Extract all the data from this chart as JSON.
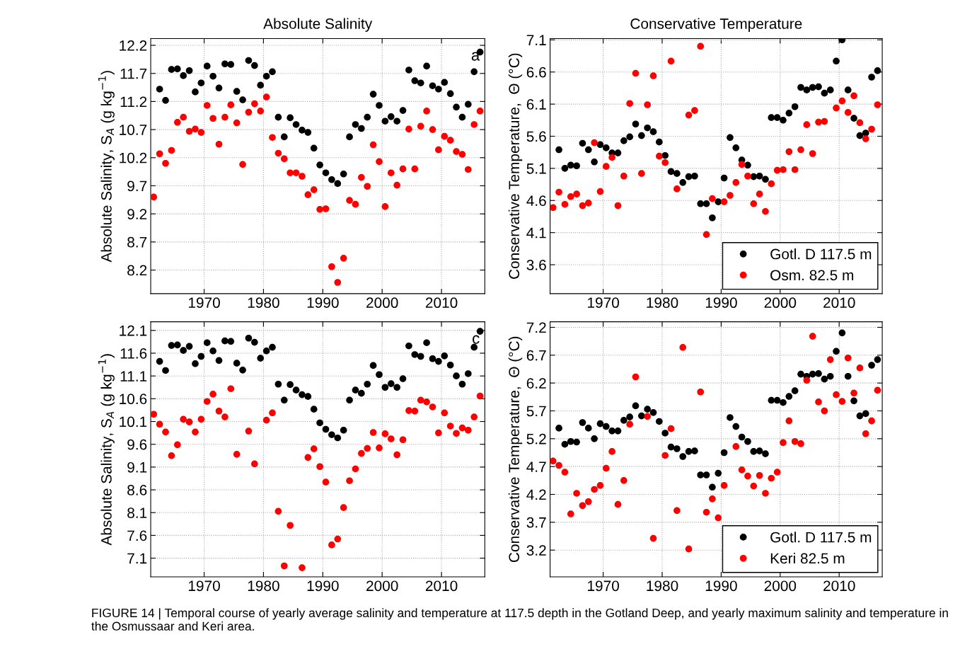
{
  "chart_data": [
    {
      "type": "scatter",
      "title": "Absolute Salinity",
      "ylabel": "Absolute Salinity, S$_{A}$ (g kg$^{−1}$)",
      "xlim": [
        1961,
        2017.3
      ],
      "xticks": [
        1970,
        1980,
        1990,
        2000,
        2010
      ],
      "ylim": [
        7.78,
        12.32
      ],
      "yticks": [
        8.2,
        8.7,
        9.2,
        9.7,
        10.2,
        10.7,
        11.2,
        11.7,
        12.2
      ],
      "grid": true,
      "marker": "circle",
      "annotations": [
        "a",
        "FIGURE 14 | Temporal course of yearly average salinity and temperature at 117.5 depth in the Gotland Deep, and yearly maximum salinity and temperature in the Osmussaar and Keri area."
      ],
      "series": [
        {
          "color": "#000000",
          "x": [
            1962.5,
            1963.5,
            1964.5,
            1965.5,
            1966.5,
            1967.5,
            1968.5,
            1969.5,
            1970.5,
            1971.5,
            1972.5,
            1973.5,
            1974.5,
            1975.5,
            1976.5,
            1977.5,
            1978.5,
            1979.5,
            1980.5,
            1981.5,
            1982.5,
            1983.5,
            1984.5,
            1985.5,
            1986.5,
            1987.5,
            1988.5,
            1989.5,
            1990.5,
            1991.5,
            1992.5,
            1993.5,
            1994.5,
            1995.5,
            1996.5,
            1997.5,
            1998.5,
            1999.5,
            2000.5,
            2001.5,
            2002.5,
            2003.5,
            2004.5,
            2005.5,
            2006.5,
            2007.5,
            2008.5,
            2009.5,
            2010.5,
            2011.5,
            2012.5,
            2013.5,
            2014.5,
            2015.5,
            2016.5
          ],
          "values": [
            11.42,
            11.22,
            11.77,
            11.78,
            11.66,
            11.75,
            11.37,
            11.53,
            11.83,
            11.65,
            11.44,
            11.87,
            11.86,
            11.38,
            11.23,
            11.93,
            11.84,
            11.49,
            11.65,
            11.73,
            10.92,
            10.57,
            10.91,
            10.79,
            10.69,
            10.65,
            10.37,
            10.07,
            9.93,
            9.81,
            9.74,
            9.91,
            10.57,
            10.79,
            10.72,
            10.92,
            11.33,
            11.13,
            10.85,
            10.93,
            10.85,
            11.04,
            11.76,
            11.57,
            11.53,
            11.83,
            11.48,
            11.42,
            11.54,
            11.34,
            11.1,
            10.92,
            11.15,
            11.73,
            12.08
          ]
        },
        {
          "color": "#ff0000",
          "x": [
            1961.5,
            1962.5,
            1963.5,
            1964.5,
            1965.5,
            1966.5,
            1967.5,
            1968.5,
            1969.5,
            1970.5,
            1971.5,
            1972.5,
            1973.5,
            1974.5,
            1975.5,
            1976.5,
            1977.5,
            1978.5,
            1979.5,
            1980.5,
            1981.5,
            1982.5,
            1983.5,
            1984.5,
            1985.5,
            1986.5,
            1987.5,
            1988.5,
            1989.5,
            1990.5,
            1991.5,
            1992.5,
            1993.5,
            1994.5,
            1995.5,
            1996.5,
            1997.5,
            1998.5,
            1999.5,
            2000.5,
            2001.5,
            2002.5,
            2003.5,
            2004.5,
            2005.5,
            2006.5,
            2007.5,
            2008.5,
            2009.5,
            2010.5,
            2011.5,
            2012.5,
            2013.5,
            2014.5,
            2015.5,
            2016.5
          ],
          "values": [
            9.5,
            10.27,
            10.1,
            10.33,
            10.83,
            10.92,
            10.67,
            10.71,
            10.65,
            11.13,
            10.9,
            10.44,
            10.92,
            11.14,
            10.82,
            10.08,
            11.01,
            11.16,
            11.03,
            11.28,
            10.56,
            10.28,
            10.18,
            9.93,
            9.93,
            9.87,
            9.54,
            9.63,
            9.28,
            9.29,
            8.26,
            7.98,
            8.41,
            9.44,
            9.37,
            9.85,
            9.69,
            10.43,
            10.13,
            9.33,
            9.93,
            9.71,
            10.0,
            10.71,
            10.0,
            10.76,
            11.03,
            10.7,
            10.34,
            10.58,
            10.51,
            10.31,
            10.26,
            9.99,
            10.79,
            11.03
          ]
        }
      ]
    },
    {
      "type": "scatter",
      "title": "Conservative Temperature",
      "ylabel": "Conservative Temperature,  Θ (°C)",
      "xlim": [
        1961,
        2017.3
      ],
      "xticks": [
        1970,
        1980,
        1990,
        2000,
        2010
      ],
      "ylim": [
        3.15,
        7.12
      ],
      "yticks": [
        3.6,
        4.1,
        4.6,
        5.1,
        5.6,
        6.1,
        6.6,
        7.1
      ],
      "grid": true,
      "marker": "circle",
      "legend": "bottom right",
      "series": [
        {
          "name": "Gotl. D 117.5 m",
          "color": "#000000",
          "x": [
            1962.5,
            1963.5,
            1964.5,
            1965.5,
            1966.5,
            1967.5,
            1968.5,
            1969.5,
            1970.5,
            1971.5,
            1972.5,
            1973.5,
            1974.5,
            1975.5,
            1976.5,
            1977.5,
            1978.5,
            1979.5,
            1980.5,
            1981.5,
            1982.5,
            1983.5,
            1984.5,
            1985.5,
            1986.5,
            1987.5,
            1988.5,
            1989.5,
            1990.5,
            1991.5,
            1992.5,
            1993.5,
            1994.5,
            1995.5,
            1996.5,
            1997.5,
            1998.5,
            1999.5,
            2000.5,
            2001.5,
            2002.5,
            2003.5,
            2004.5,
            2005.5,
            2006.5,
            2007.5,
            2008.5,
            2009.5,
            2010.5,
            2011.5,
            2012.5,
            2013.5,
            2014.5,
            2015.5,
            2016.5
          ],
          "values": [
            5.39,
            5.1,
            5.15,
            5.14,
            5.49,
            5.39,
            5.2,
            5.47,
            5.42,
            5.34,
            5.34,
            5.53,
            5.59,
            5.79,
            5.61,
            5.73,
            5.67,
            5.51,
            5.3,
            5.05,
            5.02,
            4.88,
            4.97,
            4.98,
            4.55,
            4.55,
            4.33,
            4.58,
            4.95,
            5.58,
            5.42,
            5.23,
            5.15,
            4.97,
            4.98,
            4.93,
            5.89,
            5.89,
            5.85,
            5.96,
            6.06,
            6.36,
            6.32,
            6.36,
            6.37,
            6.27,
            6.32,
            6.77,
            7.1,
            6.32,
            5.88,
            5.61,
            5.65,
            6.52,
            6.62
          ]
        },
        {
          "name": "Osm. 82.5 m",
          "color": "#ff0000",
          "x": [
            1961.5,
            1962.5,
            1963.5,
            1964.5,
            1965.5,
            1966.5,
            1967.5,
            1968.5,
            1969.5,
            1970.5,
            1971.5,
            1972.5,
            1973.5,
            1974.5,
            1975.5,
            1976.5,
            1977.5,
            1978.5,
            1979.5,
            1980.5,
            1981.5,
            1982.5,
            1983.5,
            1984.5,
            1985.5,
            1986.5,
            1987.5,
            1988.5,
            1989.5,
            1990.5,
            1991.5,
            1992.5,
            1993.5,
            1994.5,
            1995.5,
            1996.5,
            1997.5,
            1998.5,
            1999.5,
            2000.5,
            2001.5,
            2002.5,
            2003.5,
            2004.5,
            2005.5,
            2006.5,
            2007.5,
            2008.5,
            2009.5,
            2010.5,
            2011.5,
            2012.5,
            2013.5,
            2014.5,
            2015.5,
            2016.5
          ],
          "values": [
            4.49,
            4.73,
            4.54,
            4.66,
            4.7,
            4.52,
            4.56,
            5.5,
            4.74,
            5.13,
            5.27,
            4.52,
            4.98,
            6.11,
            6.58,
            5.02,
            6.09,
            6.54,
            5.29,
            5.19,
            6.77,
            4.78,
            null,
            5.93,
            6.0,
            7.0,
            4.07,
            4.63,
            null,
            4.58,
            4.68,
            4.88,
            5.16,
            4.98,
            4.55,
            4.7,
            4.43,
            4.86,
            5.07,
            5.08,
            5.36,
            5.08,
            5.39,
            5.78,
            5.33,
            5.82,
            5.83,
            null,
            6.04,
            6.15,
            5.97,
            6.23,
            5.81,
            5.56,
            5.71,
            6.09
          ]
        }
      ]
    },
    {
      "type": "scatter",
      "ylabel": "Absolute Salinity, S$_{A}$ (g kg$^{−1}$)",
      "xlim": [
        1961,
        2017.3
      ],
      "xticks": [
        1970,
        1980,
        1990,
        2000,
        2010
      ],
      "ylim": [
        6.69,
        12.29
      ],
      "yticks": [
        7.1,
        7.6,
        8.1,
        8.6,
        9.1,
        9.6,
        10.1,
        10.6,
        11.1,
        11.6,
        12.1
      ],
      "grid": true,
      "marker": "circle",
      "annotations": [
        "c"
      ],
      "series": [
        {
          "color": "#000000",
          "x": [
            1962.5,
            1963.5,
            1964.5,
            1965.5,
            1966.5,
            1967.5,
            1968.5,
            1969.5,
            1970.5,
            1971.5,
            1972.5,
            1973.5,
            1974.5,
            1975.5,
            1976.5,
            1977.5,
            1978.5,
            1979.5,
            1980.5,
            1981.5,
            1982.5,
            1983.5,
            1984.5,
            1985.5,
            1986.5,
            1987.5,
            1988.5,
            1989.5,
            1990.5,
            1991.5,
            1992.5,
            1993.5,
            1994.5,
            1995.5,
            1996.5,
            1997.5,
            1998.5,
            1999.5,
            2000.5,
            2001.5,
            2002.5,
            2003.5,
            2004.5,
            2005.5,
            2006.5,
            2007.5,
            2008.5,
            2009.5,
            2010.5,
            2011.5,
            2012.5,
            2013.5,
            2014.5,
            2015.5,
            2016.5
          ],
          "values": [
            11.42,
            11.22,
            11.77,
            11.78,
            11.66,
            11.75,
            11.37,
            11.53,
            11.83,
            11.65,
            11.44,
            11.87,
            11.86,
            11.38,
            11.23,
            11.93,
            11.84,
            11.49,
            11.65,
            11.73,
            10.92,
            10.57,
            10.91,
            10.79,
            10.69,
            10.65,
            10.37,
            10.07,
            9.93,
            9.81,
            9.74,
            9.91,
            10.57,
            10.79,
            10.72,
            10.92,
            11.33,
            11.13,
            10.85,
            10.93,
            10.85,
            11.04,
            11.76,
            11.57,
            11.53,
            11.83,
            11.48,
            11.42,
            11.54,
            11.34,
            11.1,
            10.92,
            11.15,
            11.73,
            12.08
          ]
        },
        {
          "color": "#ff0000",
          "x": [
            1961.5,
            1962.5,
            1963.5,
            1964.5,
            1965.5,
            1966.5,
            1967.5,
            1968.5,
            1969.5,
            1970.5,
            1971.5,
            1972.5,
            1973.5,
            1974.5,
            1975.5,
            1976.5,
            1977.5,
            1978.5,
            1979.5,
            1980.5,
            1981.5,
            1982.5,
            1983.5,
            1984.5,
            1985.5,
            1986.5,
            1987.5,
            1988.5,
            1989.5,
            1990.5,
            1991.5,
            1992.5,
            1993.5,
            1994.5,
            1995.5,
            1996.5,
            1997.5,
            1998.5,
            1999.5,
            2000.5,
            2001.5,
            2002.5,
            2003.5,
            2004.5,
            2005.5,
            2006.5,
            2007.5,
            2008.5,
            2009.5,
            2010.5,
            2011.5,
            2012.5,
            2013.5,
            2014.5,
            2015.5,
            2016.5
          ],
          "values": [
            10.26,
            10.04,
            9.87,
            9.35,
            9.59,
            10.15,
            10.09,
            9.87,
            10.15,
            10.54,
            10.7,
            10.33,
            10.2,
            10.82,
            9.38,
            null,
            9.89,
            9.17,
            null,
            10.13,
            10.29,
            8.13,
            6.93,
            7.82,
            null,
            6.89,
            9.31,
            9.5,
            9.11,
            8.77,
            7.39,
            7.52,
            8.21,
            8.8,
            9.06,
            9.4,
            9.51,
            9.86,
            9.52,
            9.83,
            9.72,
            9.37,
            9.7,
            10.34,
            10.33,
            10.57,
            10.53,
            10.42,
            9.85,
            10.29,
            10.0,
            9.84,
            9.96,
            9.91,
            10.2,
            10.66
          ]
        }
      ]
    },
    {
      "type": "scatter",
      "ylabel": "Conservative Temperature,  Θ (°C)",
      "xlim": [
        1961,
        2017.3
      ],
      "xticks": [
        1970,
        1980,
        1990,
        2000,
        2010
      ],
      "ylim": [
        2.72,
        7.3
      ],
      "yticks": [
        3.2,
        3.7,
        4.2,
        4.7,
        5.2,
        5.7,
        6.2,
        6.7,
        7.2
      ],
      "grid": true,
      "marker": "circle",
      "legend": "bottom right",
      "series": [
        {
          "name": "Gotl. D 117.5 m",
          "color": "#000000",
          "x": [
            1962.5,
            1963.5,
            1964.5,
            1965.5,
            1966.5,
            1967.5,
            1968.5,
            1969.5,
            1970.5,
            1971.5,
            1972.5,
            1973.5,
            1974.5,
            1975.5,
            1976.5,
            1977.5,
            1978.5,
            1979.5,
            1980.5,
            1981.5,
            1982.5,
            1983.5,
            1984.5,
            1985.5,
            1986.5,
            1987.5,
            1988.5,
            1989.5,
            1990.5,
            1991.5,
            1992.5,
            1993.5,
            1994.5,
            1995.5,
            1996.5,
            1997.5,
            1998.5,
            1999.5,
            2000.5,
            2001.5,
            2002.5,
            2003.5,
            2004.5,
            2005.5,
            2006.5,
            2007.5,
            2008.5,
            2009.5,
            2010.5,
            2011.5,
            2012.5,
            2013.5,
            2014.5,
            2015.5,
            2016.5
          ],
          "values": [
            5.39,
            5.1,
            5.15,
            5.14,
            5.49,
            5.39,
            5.2,
            5.47,
            5.42,
            5.34,
            5.34,
            5.53,
            5.59,
            5.79,
            5.61,
            5.73,
            5.67,
            5.51,
            5.3,
            5.05,
            5.02,
            4.88,
            4.97,
            4.98,
            4.55,
            4.55,
            4.33,
            4.58,
            4.95,
            5.58,
            5.42,
            5.23,
            5.15,
            4.97,
            4.98,
            4.93,
            5.89,
            5.89,
            5.85,
            5.96,
            6.06,
            6.36,
            6.32,
            6.36,
            6.37,
            6.27,
            6.32,
            6.77,
            7.1,
            6.32,
            5.88,
            5.61,
            5.65,
            6.52,
            6.62
          ]
        },
        {
          "name": "Keri 82.5 m",
          "color": "#ff0000",
          "x": [
            1961.5,
            1962.5,
            1963.5,
            1964.5,
            1965.5,
            1966.5,
            1967.5,
            1968.5,
            1969.5,
            1970.5,
            1971.5,
            1972.5,
            1973.5,
            1974.5,
            1975.5,
            1976.5,
            1977.5,
            1978.5,
            1979.5,
            1980.5,
            1981.5,
            1982.5,
            1983.5,
            1984.5,
            1985.5,
            1986.5,
            1987.5,
            1988.5,
            1989.5,
            1990.5,
            1991.5,
            1992.5,
            1993.5,
            1994.5,
            1995.5,
            1996.5,
            1997.5,
            1998.5,
            1999.5,
            2000.5,
            2001.5,
            2002.5,
            2003.5,
            2004.5,
            2005.5,
            2006.5,
            2007.5,
            2008.5,
            2009.5,
            2010.5,
            2011.5,
            2012.5,
            2013.5,
            2014.5,
            2015.5,
            2016.5
          ],
          "values": [
            4.8,
            4.72,
            4.6,
            3.85,
            4.22,
            4.0,
            4.07,
            4.29,
            4.36,
            4.67,
            4.97,
            4.02,
            4.45,
            5.46,
            6.31,
            null,
            5.6,
            3.41,
            null,
            4.9,
            5.38,
            3.91,
            6.84,
            3.22,
            null,
            6.04,
            3.88,
            4.12,
            3.78,
            4.36,
            null,
            5.06,
            4.64,
            4.53,
            4.35,
            4.54,
            4.22,
            4.49,
            4.6,
            5.13,
            5.52,
            5.15,
            5.11,
            6.25,
            7.04,
            5.86,
            5.7,
            6.62,
            5.99,
            5.87,
            6.65,
            6.02,
            6.47,
            5.29,
            5.52,
            6.07
          ]
        }
      ]
    }
  ]
}
